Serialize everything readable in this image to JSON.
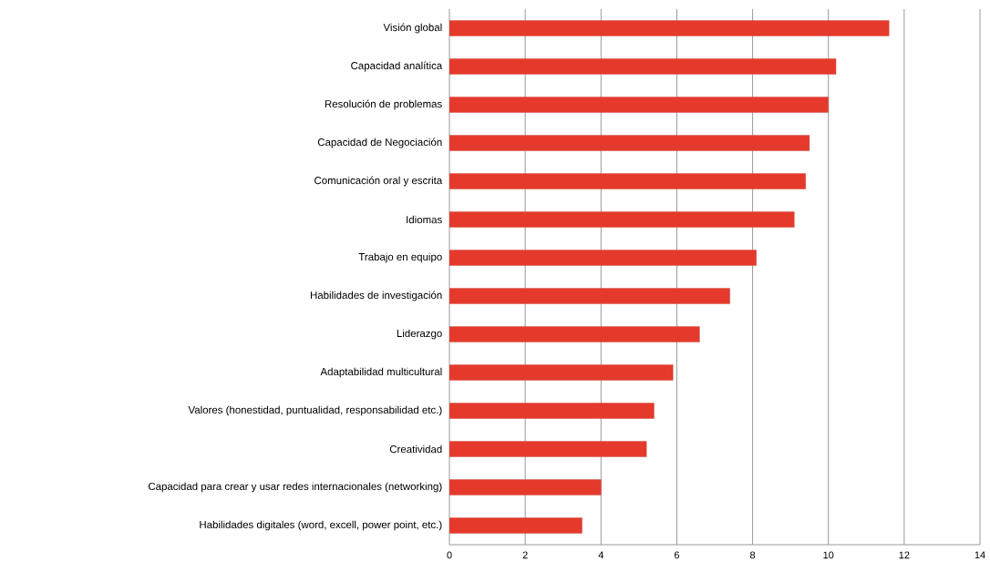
{
  "chart_data": {
    "type": "bar",
    "orientation": "horizontal",
    "categories": [
      "Visión global",
      "Capacidad analítica",
      "Resolución de problemas",
      "Capacidad de Negociación",
      "Comunicación oral y escrita",
      "Idiomas",
      "Trabajo en equipo",
      "Habilidades de investigación",
      "Liderazgo",
      "Adaptabilidad multicultural",
      "Valores (honestidad, puntualidad, responsabilidad etc.)",
      "Creatividad",
      "Capacidad para crear y usar redes internacionales (networking)",
      "Habilidades digitales (word, excell, power point, etc.)"
    ],
    "values": [
      11.6,
      10.2,
      10.0,
      9.5,
      9.4,
      9.1,
      8.1,
      7.4,
      6.6,
      5.9,
      5.4,
      5.2,
      4.0,
      3.5
    ],
    "color": "#e53a2b",
    "xlim": [
      0,
      14
    ],
    "xticks": [
      0,
      2,
      4,
      6,
      8,
      10,
      12,
      14
    ],
    "grid": "x"
  }
}
